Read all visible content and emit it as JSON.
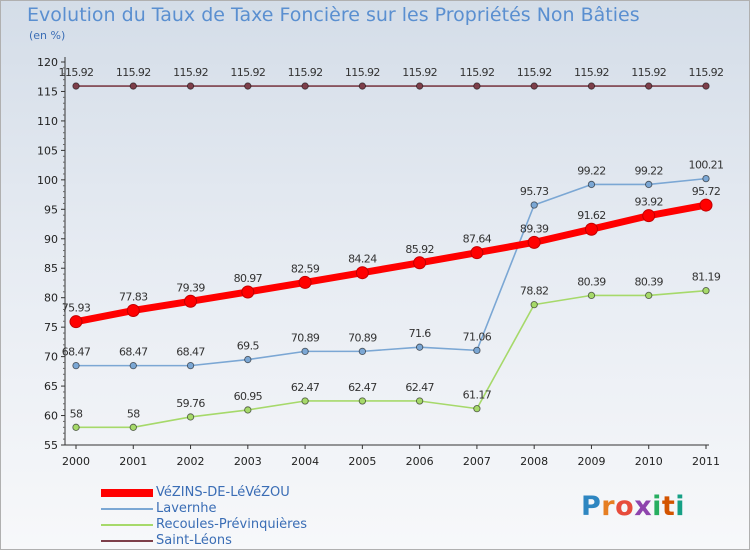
{
  "title": "Evolution du Taux de Taxe Foncière sur les Propriétés Non Bâties",
  "unit_label": "(en %)",
  "brand": {
    "letters": [
      "P",
      "r",
      "o",
      "x",
      "i",
      "t",
      "i"
    ],
    "colors": [
      "#2e86c1",
      "#e67e22",
      "#e74c3c",
      "#8e44ad",
      "#27ae60",
      "#d35400",
      "#16a085"
    ]
  },
  "chart_data": {
    "type": "line",
    "x": [
      "2000",
      "2001",
      "2002",
      "2003",
      "2004",
      "2005",
      "2006",
      "2007",
      "2008",
      "2009",
      "2010",
      "2011"
    ],
    "ylim": [
      55,
      120
    ],
    "yticks": [
      55,
      60,
      65,
      70,
      75,
      80,
      85,
      90,
      95,
      100,
      105,
      110,
      115,
      120
    ],
    "grid": false,
    "legend_position": "bottom-left",
    "series": [
      {
        "name": "VéZINS-DE-LéVéZOU",
        "color": "#ff0000",
        "values": [
          75.93,
          77.83,
          79.39,
          80.97,
          82.59,
          84.24,
          85.92,
          87.64,
          89.39,
          91.62,
          93.92,
          95.72
        ],
        "labels": [
          "75.93",
          "77.83",
          "79.39",
          "80.97",
          "82.59",
          "84.24",
          "85.92",
          "87.64",
          "89.39",
          "91.62",
          "93.92",
          "95.72"
        ]
      },
      {
        "name": "Lavernhe",
        "color": "#7ba7d4",
        "values": [
          68.47,
          68.47,
          68.47,
          69.5,
          70.89,
          70.89,
          71.6,
          71.06,
          95.73,
          99.22,
          99.22,
          100.21
        ],
        "labels": [
          "68.47",
          "68.47",
          "68.47",
          "69.5",
          "70.89",
          "70.89",
          "71.6",
          "71.06",
          "95.73",
          "99.22",
          "99.22",
          "100.21"
        ]
      },
      {
        "name": "Recoules-Prévinquières",
        "color": "#a6d96a",
        "values": [
          58,
          58,
          59.76,
          60.95,
          62.47,
          62.47,
          62.47,
          61.17,
          78.82,
          80.39,
          80.39,
          81.19
        ],
        "labels": [
          "58",
          "58",
          "59.76",
          "60.95",
          "62.47",
          "62.47",
          "62.47",
          "61.17",
          "78.82",
          "80.39",
          "80.39",
          "81.19"
        ]
      },
      {
        "name": "Saint-Léons",
        "color": "#7d3f4a",
        "values": [
          115.92,
          115.92,
          115.92,
          115.92,
          115.92,
          115.92,
          115.92,
          115.92,
          115.92,
          115.92,
          115.92,
          115.92
        ],
        "labels": [
          "115.92",
          "115.92",
          "115.92",
          "115.92",
          "115.92",
          "115.92",
          "115.92",
          "115.92",
          "115.92",
          "115.92",
          "115.92",
          "115.92"
        ]
      }
    ]
  }
}
